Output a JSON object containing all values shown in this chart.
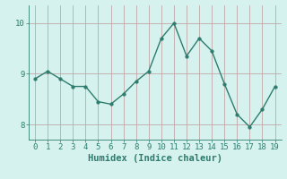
{
  "x": [
    0,
    1,
    2,
    3,
    4,
    5,
    6,
    7,
    8,
    9,
    10,
    11,
    12,
    13,
    14,
    15,
    16,
    17,
    18,
    19
  ],
  "y": [
    8.9,
    9.05,
    8.9,
    8.75,
    8.75,
    8.45,
    8.4,
    8.6,
    8.85,
    9.05,
    9.7,
    10.0,
    9.35,
    9.7,
    9.45,
    8.8,
    8.2,
    7.95,
    8.3,
    8.75
  ],
  "line_color": "#2e7c6e",
  "marker": "o",
  "marker_size": 2.5,
  "bg_color": "#d5f2ee",
  "grid_color": "#c0a8a8",
  "xlabel": "Humidex (Indice chaleur)",
  "xlim": [
    -0.5,
    19.5
  ],
  "ylim": [
    7.7,
    10.35
  ],
  "yticks": [
    8,
    9,
    10
  ],
  "xticks": [
    0,
    1,
    2,
    3,
    4,
    5,
    6,
    7,
    8,
    9,
    10,
    11,
    12,
    13,
    14,
    15,
    16,
    17,
    18,
    19
  ],
  "tick_color": "#2e7c6e",
  "xlabel_fontsize": 7.5,
  "tick_fontsize": 6.5,
  "line_width": 1.0
}
